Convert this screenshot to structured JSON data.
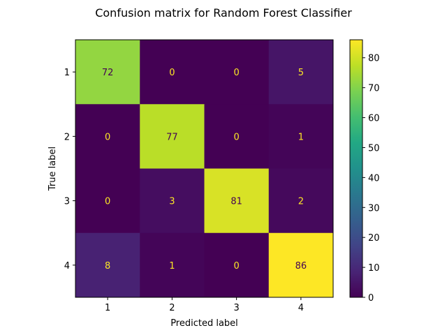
{
  "chart_data": {
    "type": "heatmap",
    "title": "Confusion matrix for Random Forest Classifier",
    "xlabel": "Predicted label",
    "ylabel": "True label",
    "x_categories": [
      "1",
      "2",
      "3",
      "4"
    ],
    "y_categories": [
      "1",
      "2",
      "3",
      "4"
    ],
    "matrix": [
      [
        72,
        0,
        0,
        5
      ],
      [
        0,
        77,
        0,
        1
      ],
      [
        0,
        3,
        81,
        2
      ],
      [
        8,
        1,
        0,
        86
      ]
    ],
    "colormap": "viridis",
    "value_range": [
      0,
      86
    ],
    "colorbar": {
      "ticks": [
        0,
        10,
        20,
        30,
        40,
        50,
        60,
        70,
        80
      ],
      "tick_labels": [
        "0",
        "10",
        "20",
        "30",
        "40",
        "50",
        "60",
        "70",
        "80"
      ]
    },
    "label_colors": {
      "on_dark": "#fde725",
      "on_light": "#440154"
    }
  }
}
